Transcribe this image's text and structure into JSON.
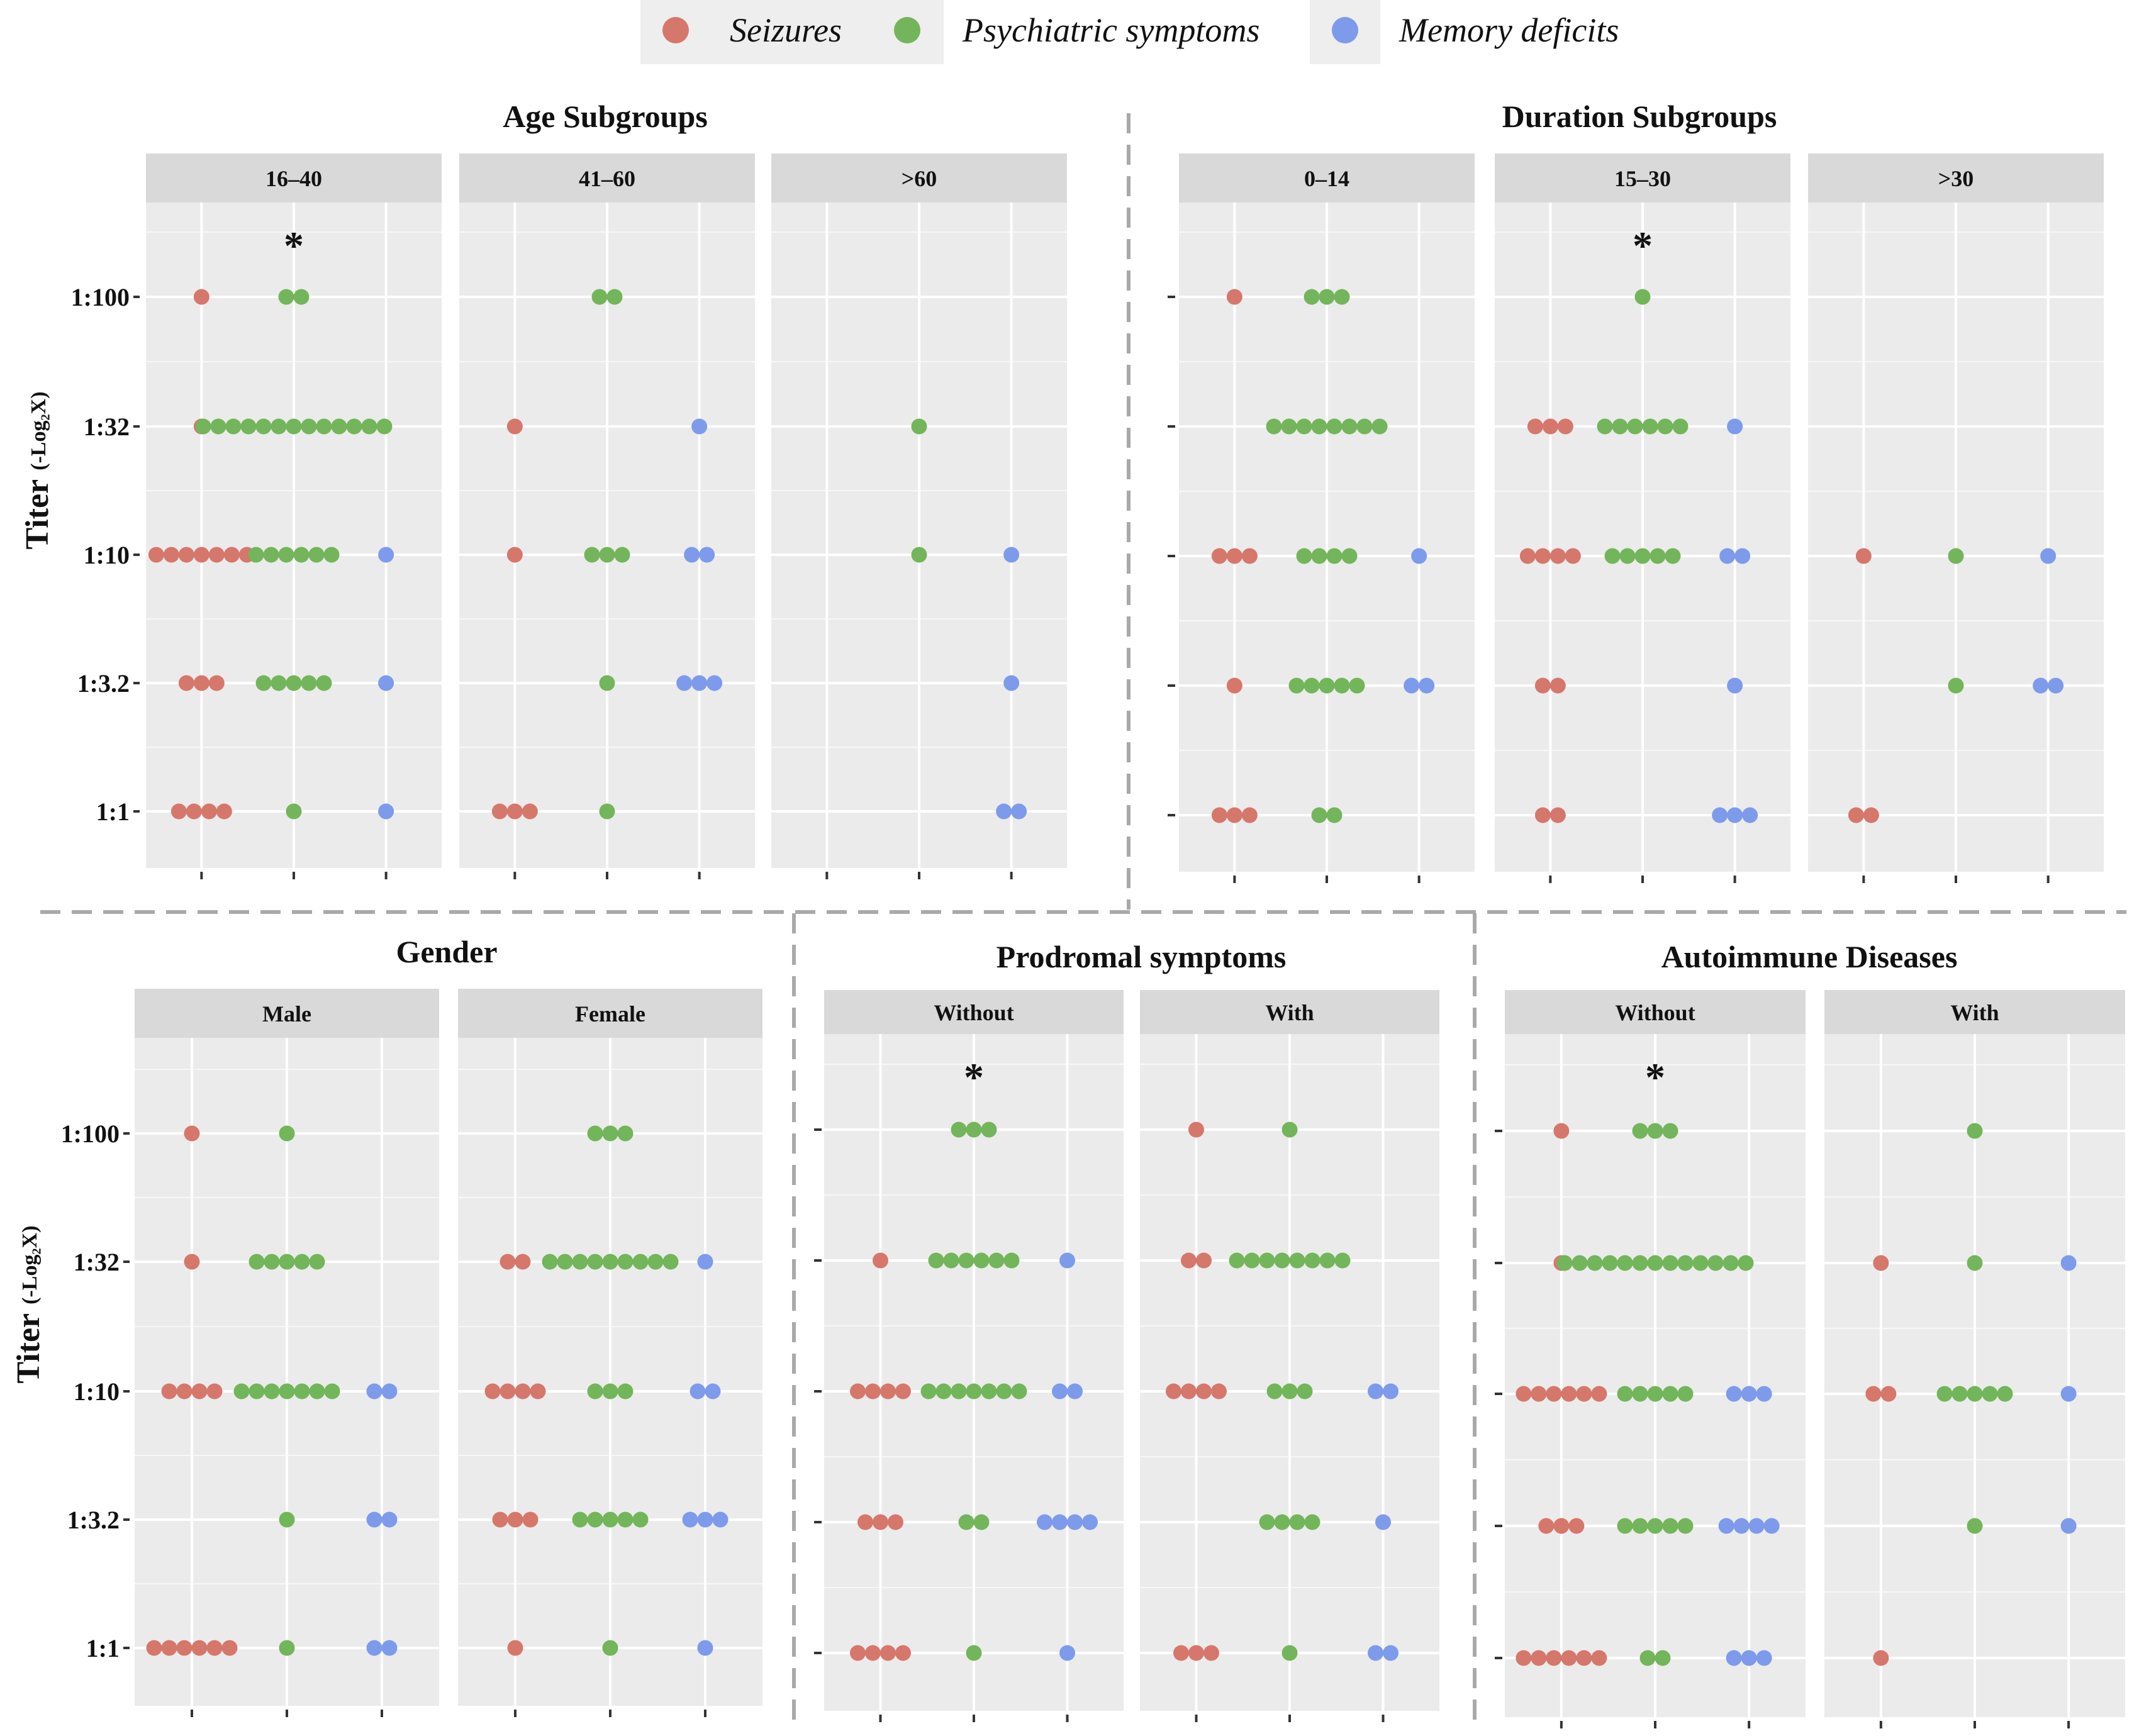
{
  "legend": [
    {
      "name": "Seizures",
      "color": "#D6776C"
    },
    {
      "name": "Psychiatric symptoms",
      "color": "#73B55A"
    },
    {
      "name": "Memory deficits",
      "color": "#7D9BEA"
    }
  ],
  "y_axis": {
    "title": "Titer",
    "subtitle": "(-Log₂X)",
    "ticks": [
      "1:100",
      "1:32",
      "1:10",
      "1:3.2",
      "1:1"
    ]
  },
  "groups": [
    {
      "title": "Age Subgroups"
    },
    {
      "title": "Duration Subgroups"
    },
    {
      "title": "Gender"
    },
    {
      "title": "Prodromal symptoms"
    },
    {
      "title": "Autoimmune Diseases"
    }
  ],
  "significance_marker": "*",
  "chart_data": {
    "type": "dotplot",
    "description_note": "Counts of patients per titer level for each symptom category",
    "categories": [
      "Seizures",
      "Psychiatric symptoms",
      "Memory deficits"
    ],
    "titers": [
      "1:100",
      "1:32",
      "1:10",
      "1:3.2",
      "1:1"
    ],
    "panels": [
      {
        "group": 0,
        "label": "16–40",
        "star": true,
        "counts": {
          "Seizures": [
            1,
            1,
            7,
            3,
            4
          ],
          "Psychiatric symptoms": [
            2,
            13,
            6,
            5,
            1
          ],
          "Memory deficits": [
            0,
            0,
            1,
            1,
            1
          ]
        }
      },
      {
        "group": 0,
        "label": "41–60",
        "star": false,
        "counts": {
          "Seizures": [
            0,
            1,
            1,
            0,
            3
          ],
          "Psychiatric symptoms": [
            2,
            0,
            3,
            1,
            1
          ],
          "Memory deficits": [
            0,
            1,
            2,
            3,
            0
          ]
        }
      },
      {
        "group": 0,
        "label": ">60",
        "star": false,
        "counts": {
          "Seizures": [
            0,
            0,
            0,
            0,
            0
          ],
          "Psychiatric symptoms": [
            0,
            1,
            1,
            0,
            0
          ],
          "Memory deficits": [
            0,
            0,
            1,
            1,
            2
          ]
        }
      },
      {
        "group": 1,
        "label": "0–14",
        "star": false,
        "counts": {
          "Seizures": [
            1,
            0,
            3,
            1,
            3
          ],
          "Psychiatric symptoms": [
            3,
            8,
            4,
            5,
            2
          ],
          "Memory deficits": [
            0,
            0,
            1,
            2,
            0
          ]
        }
      },
      {
        "group": 1,
        "label": "15–30",
        "star": true,
        "counts": {
          "Seizures": [
            0,
            3,
            4,
            2,
            2
          ],
          "Psychiatric symptoms": [
            1,
            6,
            5,
            0,
            0
          ],
          "Memory deficits": [
            0,
            1,
            2,
            1,
            3
          ]
        }
      },
      {
        "group": 1,
        "label": ">30",
        "star": false,
        "counts": {
          "Seizures": [
            0,
            0,
            1,
            0,
            2
          ],
          "Psychiatric symptoms": [
            0,
            0,
            1,
            1,
            0
          ],
          "Memory deficits": [
            0,
            0,
            1,
            2,
            0
          ]
        }
      },
      {
        "group": 2,
        "label": "Male",
        "star": false,
        "counts": {
          "Seizures": [
            1,
            1,
            4,
            0,
            6
          ],
          "Psychiatric symptoms": [
            1,
            5,
            7,
            1,
            1
          ],
          "Memory deficits": [
            0,
            0,
            2,
            2,
            2
          ]
        }
      },
      {
        "group": 2,
        "label": "Female",
        "star": false,
        "counts": {
          "Seizures": [
            0,
            2,
            4,
            3,
            1
          ],
          "Psychiatric symptoms": [
            3,
            9,
            3,
            5,
            1
          ],
          "Memory deficits": [
            0,
            1,
            2,
            3,
            1
          ]
        }
      },
      {
        "group": 3,
        "label": "Without",
        "star": true,
        "counts": {
          "Seizures": [
            0,
            1,
            4,
            3,
            4
          ],
          "Psychiatric symptoms": [
            3,
            6,
            7,
            2,
            1
          ],
          "Memory deficits": [
            0,
            1,
            2,
            4,
            1
          ]
        }
      },
      {
        "group": 3,
        "label": "With",
        "star": false,
        "counts": {
          "Seizures": [
            1,
            2,
            4,
            0,
            3
          ],
          "Psychiatric symptoms": [
            1,
            8,
            3,
            4,
            1
          ],
          "Memory deficits": [
            0,
            0,
            2,
            1,
            2
          ]
        }
      },
      {
        "group": 4,
        "label": "Without",
        "star": true,
        "counts": {
          "Seizures": [
            1,
            1,
            6,
            3,
            6
          ],
          "Psychiatric symptoms": [
            3,
            13,
            5,
            5,
            2
          ],
          "Memory deficits": [
            0,
            0,
            3,
            4,
            3
          ]
        }
      },
      {
        "group": 4,
        "label": "With",
        "star": false,
        "counts": {
          "Seizures": [
            0,
            1,
            2,
            0,
            1
          ],
          "Psychiatric symptoms": [
            1,
            1,
            5,
            1,
            0
          ],
          "Memory deficits": [
            0,
            1,
            1,
            1,
            0
          ]
        }
      }
    ]
  }
}
